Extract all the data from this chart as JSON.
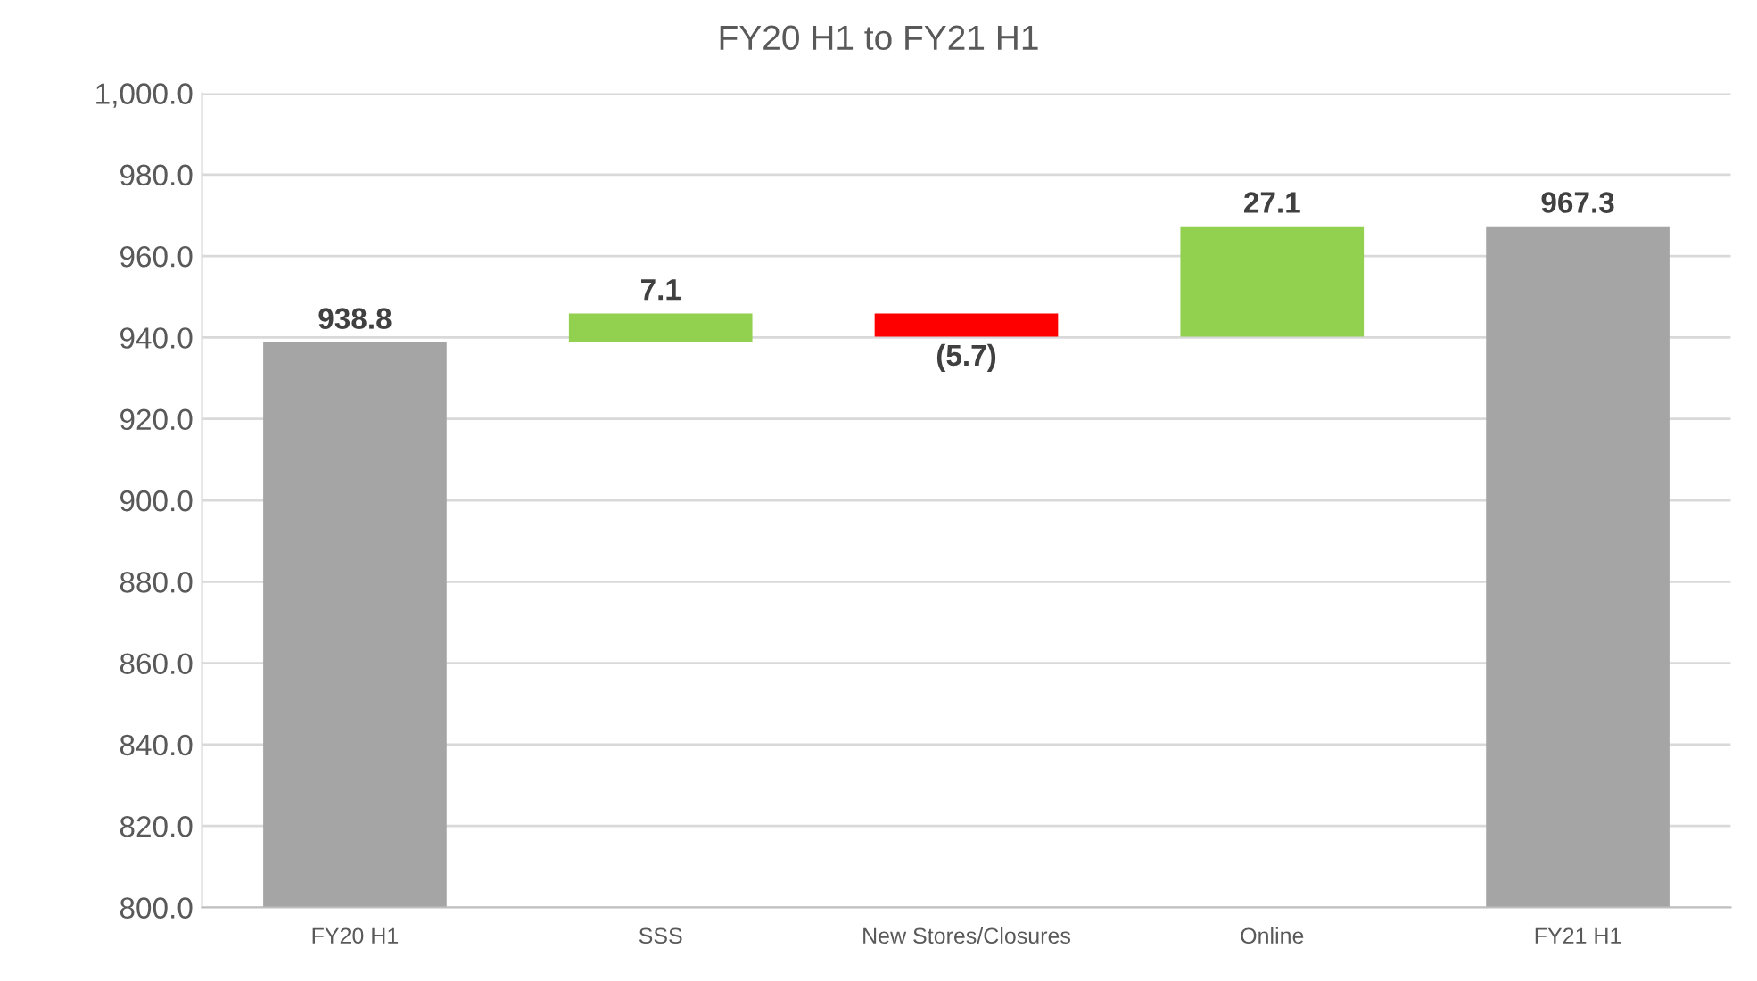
{
  "chart_data": {
    "type": "bar",
    "title": "FY20 H1 to FY21 H1",
    "categories": [
      "FY20 H1",
      "SSS",
      "New Stores/Closures",
      "Online",
      "FY21 H1"
    ],
    "values": [
      938.8,
      7.1,
      -5.7,
      27.1,
      967.3
    ],
    "base": [
      0,
      938.8,
      945.9,
      940.2,
      0
    ],
    "colors": [
      "#a5a5a5",
      "#92d050",
      "#ff0000",
      "#92d050",
      "#a5a5a5"
    ],
    "value_labels": [
      "938.8",
      "7.1",
      "(5.7)",
      "27.1",
      "967.3"
    ],
    "ylim": [
      800,
      1000
    ],
    "yticks": [
      {
        "value": 800,
        "label": "800.0"
      },
      {
        "value": 820,
        "label": "820.0"
      },
      {
        "value": 840,
        "label": "840.0"
      },
      {
        "value": 860,
        "label": "860.0"
      },
      {
        "value": 880,
        "label": "880.0"
      },
      {
        "value": 900,
        "label": "900.0"
      },
      {
        "value": 920,
        "label": "920.0"
      },
      {
        "value": 940,
        "label": "940.0"
      },
      {
        "value": 960,
        "label": "960.0"
      },
      {
        "value": 980,
        "label": "980.0"
      },
      {
        "value": 1000,
        "label": "1,000.0"
      }
    ],
    "grid": "y"
  }
}
